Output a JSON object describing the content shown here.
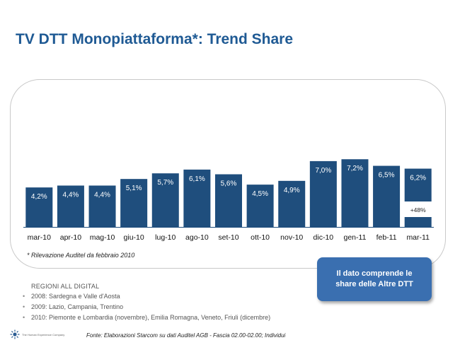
{
  "title": "TV DTT Monopiattaforma*: Trend Share",
  "chart_data": {
    "type": "bar",
    "categories": [
      "mar-10",
      "apr-10",
      "mag-10",
      "giu-10",
      "lug-10",
      "ago-10",
      "set-10",
      "ott-10",
      "nov-10",
      "dic-10",
      "gen-11",
      "feb-11",
      "mar-11"
    ],
    "values": [
      4.2,
      4.4,
      4.4,
      5.1,
      5.7,
      6.1,
      5.6,
      4.5,
      4.9,
      7.0,
      7.2,
      6.5,
      6.2
    ],
    "value_labels": [
      "4,2%",
      "4,4%",
      "4,4%",
      "5,1%",
      "5,7%",
      "6,1%",
      "5,6%",
      "4,5%",
      "4,9%",
      "7,0%",
      "7,2%",
      "6,5%",
      "6,2%"
    ],
    "extra_segment": {
      "category": "mar-11",
      "label": "+48%"
    },
    "bar_color": "#1f4e7d",
    "ylim": [
      0,
      7.6
    ],
    "grid": false
  },
  "footnote": "Rilevazione Auditel da febbraio 2010",
  "footnote_marker": "*",
  "callout": {
    "line1": "Il dato comprende le",
    "line2": "share delle Altre DTT"
  },
  "regions": {
    "title": "REGIONI ALL DIGITAL",
    "items": [
      "2008: Sardegna e Valle d'Aosta",
      "2009: Lazio, Campania, Trentino",
      "2010: Piemonte e Lombardia (novembre), Emilia Romagna, Veneto, Friuli (dicembre)"
    ]
  },
  "logo": {
    "text": "The Human Experience Company",
    "icon": "sun-logo-icon"
  },
  "source": "Fonte: Elaborazioni Starcom su dati Auditel AGB - Fascia 02.00-02.00; Individui"
}
